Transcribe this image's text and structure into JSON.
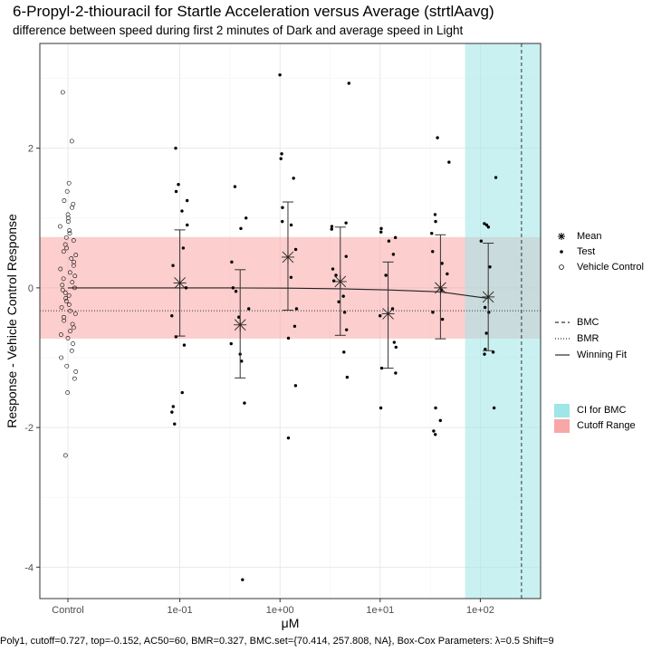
{
  "chart_data": {
    "type": "scatter",
    "title": "6-Propyl-2-thiouracil for Startle Acceleration versus Average (strtlAavg)",
    "subtitle": "difference between speed during first 2 minutes of Dark and average speed in Light",
    "xlabel": "μM",
    "ylabel": "Response - Vehicle Control Response",
    "x_scale": "log10",
    "x_ticks": [
      "Control",
      "1e-01",
      "1e+00",
      "1e+01",
      "1e+02"
    ],
    "x_tick_values": [
      null,
      0.1,
      1,
      10,
      100
    ],
    "x_range": [
      0.004,
      400
    ],
    "y_ticks": [
      -4,
      -2,
      0,
      2
    ],
    "ylim": [
      -4.45,
      3.5
    ],
    "grid": true,
    "legend_position": "right",
    "colors": {
      "ci_band": "#9ee6e8",
      "cutoff_band": "#f9a6a6",
      "line": "#000000",
      "points": "#000000"
    },
    "cutoff_range": [
      -0.727,
      0.727
    ],
    "bmr": -0.327,
    "bmc": 257.808,
    "ci_for_bmc": [
      70.414,
      400
    ],
    "winning_fit": {
      "model": "Poly1",
      "top": -0.152,
      "ac50": 60,
      "points": [
        [
          0.1,
          0.0
        ],
        [
          0.4,
          -0.001
        ],
        [
          1.2,
          -0.004
        ],
        [
          4,
          -0.013
        ],
        [
          12,
          -0.03
        ],
        [
          40,
          -0.057
        ],
        [
          120,
          -0.152
        ]
      ]
    },
    "vehicle_control_points": [
      2.8,
      2.1,
      1.5,
      1.38,
      1.25,
      1.2,
      1.15,
      1.05,
      1.0,
      0.95,
      0.88,
      0.82,
      0.78,
      0.72,
      0.68,
      0.62,
      0.57,
      0.52,
      0.47,
      0.42,
      0.37,
      0.32,
      0.27,
      0.22,
      0.17,
      0.13,
      0.08,
      0.04,
      0.0,
      -0.03,
      -0.07,
      -0.11,
      -0.15,
      -0.19,
      -0.24,
      -0.28,
      -0.33,
      -0.37,
      -0.42,
      -0.47,
      -0.52,
      -0.57,
      -0.62,
      -0.67,
      -0.72,
      -0.8,
      -0.9,
      -1.0,
      -1.12,
      -1.2,
      -1.3,
      -1.5,
      -2.4
    ],
    "test_groups": [
      {
        "conc": 0.1,
        "mean": 0.07,
        "sd_low": -0.69,
        "sd_high": 0.83,
        "points": [
          2.0,
          1.48,
          1.38,
          1.25,
          1.1,
          0.9,
          0.57,
          0.32,
          0.0,
          -0.4,
          -0.7,
          -0.82,
          -1.5,
          -1.7,
          -1.78,
          -1.95
        ]
      },
      {
        "conc": 0.4,
        "mean": -0.53,
        "sd_low": -1.29,
        "sd_high": 0.26,
        "points": [
          1.45,
          1.0,
          0.85,
          0.37,
          0.0,
          -0.05,
          -0.3,
          -0.42,
          -0.8,
          -0.95,
          -1.05,
          -1.65,
          -4.18
        ]
      },
      {
        "conc": 1.2,
        "mean": 0.44,
        "sd_low": -0.32,
        "sd_high": 1.23,
        "points": [
          3.05,
          1.92,
          1.85,
          1.57,
          1.15,
          0.95,
          0.9,
          0.55,
          0.15,
          -0.3,
          -0.55,
          -0.72,
          -1.4,
          -2.15
        ]
      },
      {
        "conc": 4,
        "mean": 0.09,
        "sd_low": -0.68,
        "sd_high": 0.87,
        "points": [
          2.93,
          0.93,
          0.88,
          0.84,
          0.45,
          0.27,
          0.18,
          0.1,
          -0.12,
          -0.2,
          -0.35,
          -0.6,
          -0.92,
          -1.28
        ]
      },
      {
        "conc": 12,
        "mean": -0.37,
        "sd_low": -1.15,
        "sd_high": 0.37,
        "points": [
          0.85,
          0.8,
          0.72,
          0.67,
          0.48,
          0.18,
          -0.3,
          -0.4,
          -0.78,
          -0.85,
          -1.15,
          -1.22,
          -1.72
        ]
      },
      {
        "conc": 40,
        "mean": 0.0,
        "sd_low": -0.73,
        "sd_high": 0.76,
        "points": [
          2.15,
          1.8,
          1.05,
          0.95,
          0.78,
          0.52,
          0.35,
          0.2,
          -0.03,
          -0.35,
          -0.45,
          -1.72,
          -1.9,
          -2.05,
          -2.1
        ]
      },
      {
        "conc": 120,
        "mean": -0.13,
        "sd_low": -0.9,
        "sd_high": 0.64,
        "points": [
          1.58,
          0.92,
          0.9,
          0.87,
          0.67,
          0.3,
          -0.28,
          -0.35,
          -0.65,
          -0.88,
          -0.92,
          -0.95,
          -1.72
        ]
      }
    ]
  },
  "legend": {
    "shape_items": [
      {
        "symbol": "star",
        "label": "Mean"
      },
      {
        "symbol": "dot",
        "label": "Test"
      },
      {
        "symbol": "circle",
        "label": "Vehicle Control"
      }
    ],
    "line_items": [
      {
        "style": "dashed",
        "label": "BMC"
      },
      {
        "style": "dotted",
        "label": "BMR"
      },
      {
        "style": "solid",
        "label": "Winning Fit"
      }
    ],
    "fill_items": [
      {
        "color": "#9ee6e8",
        "label": "CI for BMC"
      },
      {
        "color": "#f9a6a6",
        "label": "Cutoff Range"
      }
    ]
  },
  "caption": "Poly1, cutoff=0.727, top=-0.152, AC50=60, BMR=0.327, BMC.set={70.414, 257.808, NA}, Box-Cox Parameters: λ=0.5 Shift=9"
}
